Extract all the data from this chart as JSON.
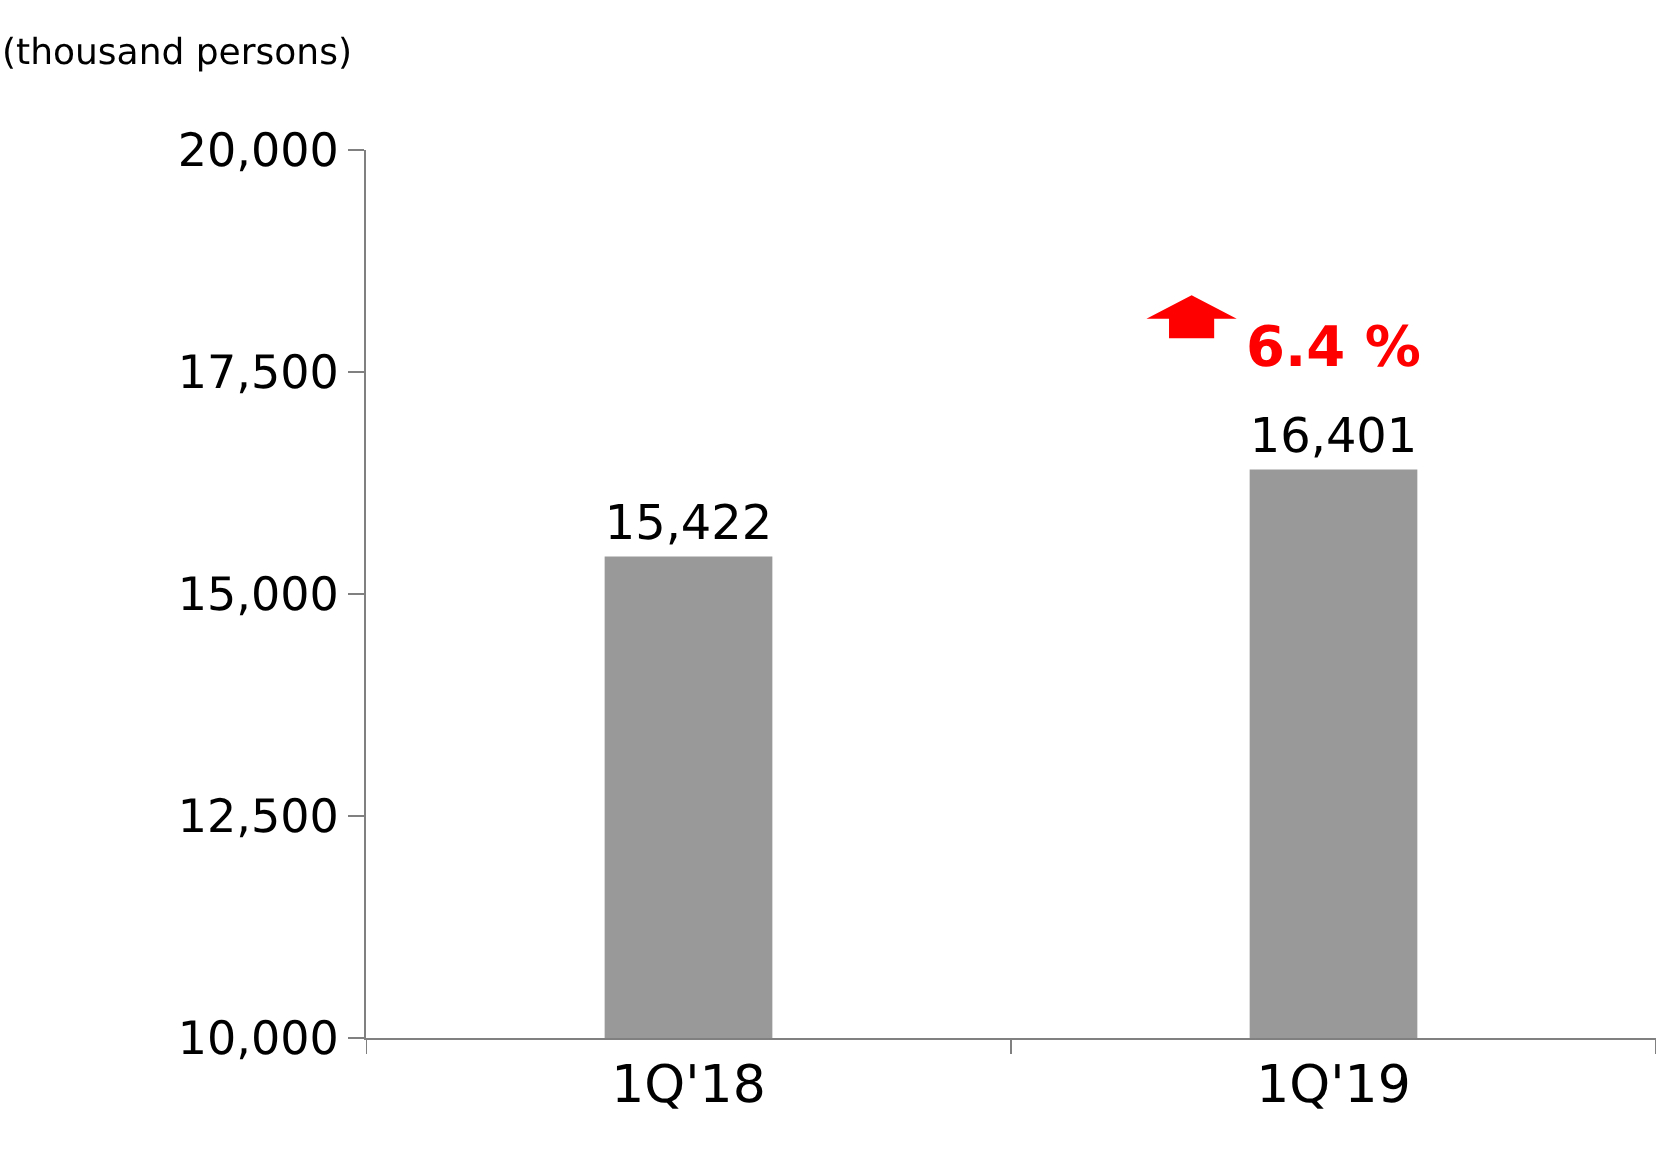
{
  "chart_data": {
    "type": "bar",
    "ylabel": "(thousand persons)",
    "categories": [
      "1Q'18",
      "1Q'19"
    ],
    "series": [
      {
        "color": "#999999",
        "values": [
          15422,
          16401
        ],
        "value_labels": [
          "15,422",
          "16,401"
        ]
      }
    ],
    "ylim": [
      10000,
      20000
    ],
    "yticks": [
      {
        "value": 10000,
        "label": "10,000"
      },
      {
        "value": 12500,
        "label": "12,500"
      },
      {
        "value": 15000,
        "label": "15,000"
      },
      {
        "value": 17500,
        "label": "17,500"
      },
      {
        "value": 20000,
        "label": "20,000"
      }
    ],
    "annotations": [
      "6.4 %"
    ]
  }
}
